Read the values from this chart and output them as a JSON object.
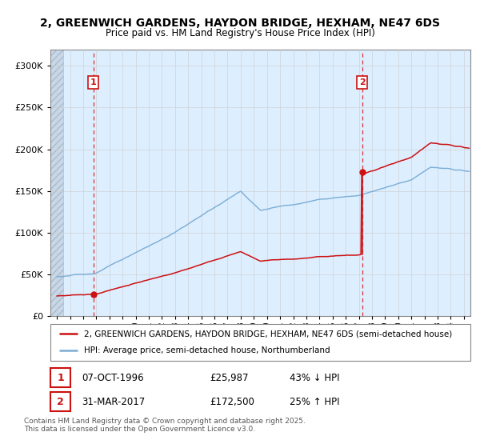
{
  "title1": "2, GREENWICH GARDENS, HAYDON BRIDGE, HEXHAM, NE47 6DS",
  "title2": "Price paid vs. HM Land Registry's House Price Index (HPI)",
  "legend_line1": "2, GREENWICH GARDENS, HAYDON BRIDGE, HEXHAM, NE47 6DS (semi-detached house)",
  "legend_line2": "HPI: Average price, semi-detached house, Northumberland",
  "annotation1_date": "07-OCT-1996",
  "annotation1_price": "£25,987",
  "annotation1_hpi": "43% ↓ HPI",
  "annotation2_date": "31-MAR-2017",
  "annotation2_price": "£172,500",
  "annotation2_hpi": "25% ↑ HPI",
  "footnote": "Contains HM Land Registry data © Crown copyright and database right 2025.\nThis data is licensed under the Open Government Licence v3.0.",
  "sale1_year": 1996.77,
  "sale1_price": 25987,
  "sale2_year": 2017.25,
  "sale2_price": 172500,
  "hpi_color": "#7aadd4",
  "price_color": "#cc1111",
  "vline_color": "#dd3333",
  "ylim_max": 320000,
  "xlim_min": 1993.5,
  "xlim_max": 2025.5,
  "bg_color": "#ddeeff",
  "hatch_color": "#bbccdd",
  "grid_color": "#cccccc"
}
